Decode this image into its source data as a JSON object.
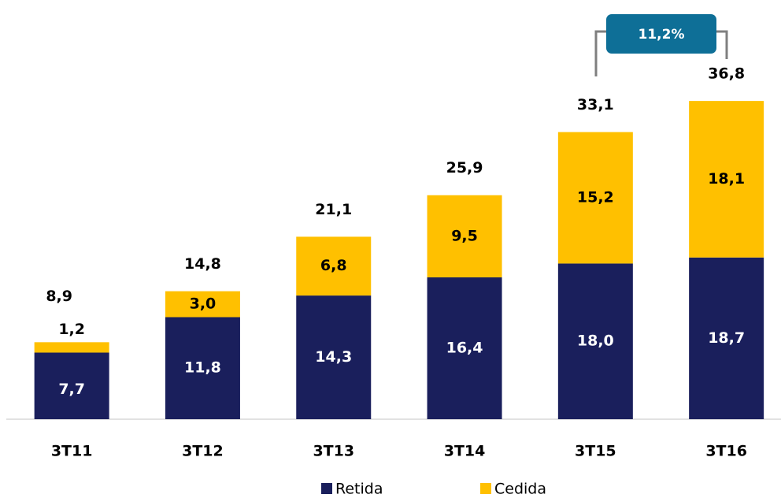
{
  "chart_data": {
    "type": "bar",
    "stacked": true,
    "categories": [
      "3T11",
      "3T12",
      "3T13",
      "3T14",
      "3T15",
      "3T16"
    ],
    "series": [
      {
        "name": "Retida",
        "color": "#1a1f5c",
        "values": [
          7.7,
          11.8,
          14.3,
          16.4,
          18.0,
          18.7
        ],
        "value_labels": [
          "7,7",
          "11,8",
          "14,3",
          "16,4",
          "18,0",
          "18,7"
        ]
      },
      {
        "name": "Cedida",
        "color": "#ffc000",
        "values": [
          1.2,
          3.0,
          6.8,
          9.5,
          15.2,
          18.1
        ],
        "value_labels": [
          "1,2",
          "3,0",
          "6,8",
          "9,5",
          "15,2",
          "18,1"
        ]
      }
    ],
    "totals": [
      8.9,
      14.8,
      21.1,
      25.9,
      33.1,
      36.8
    ],
    "total_labels": [
      "8,9",
      "14,8",
      "21,1",
      "25,9",
      "33,1",
      "36,8"
    ],
    "annotation": "11,2%",
    "ylim": [
      0,
      40
    ]
  }
}
